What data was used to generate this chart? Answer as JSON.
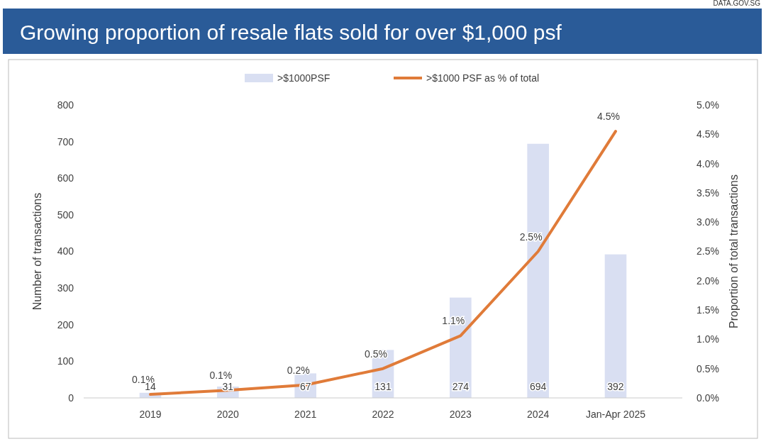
{
  "chart_data": {
    "type": "bar",
    "title": "Growing proportion of resale flats sold for over $1,000 psf",
    "annotations": [
      "DATA.GOV.SG"
    ],
    "categories": [
      "2019",
      "2020",
      "2021",
      "2022",
      "2023",
      "2024",
      "Jan-Apr 2025"
    ],
    "series": [
      {
        "name": ">$1000PSF",
        "color": "#d9dff2",
        "values": [
          14,
          31,
          67,
          131,
          274,
          694,
          392
        ],
        "value_labels": [
          "14",
          "31",
          "67",
          "131",
          "274",
          "694",
          "392"
        ]
      },
      {
        "name": ">$1000 PSF as % of total",
        "type": "line",
        "axis": "y2",
        "color": "#e07b39",
        "values": [
          0.06,
          0.13,
          0.22,
          0.5,
          1.06,
          2.5,
          4.55
        ],
        "value_labels": [
          "0.1%",
          "0.1%",
          "0.2%",
          "0.5%",
          "1.1%",
          "2.5%",
          "4.5%"
        ]
      }
    ],
    "ylabel": "Number of transactions",
    "y2label": "Proportion of total transactions",
    "ylim": [
      0,
      800
    ],
    "yticks": [
      0,
      100,
      200,
      300,
      400,
      500,
      600,
      700,
      800
    ],
    "y2lim": [
      0,
      5
    ],
    "y2ticks": [
      {
        "value": 0,
        "label": "0.0%"
      },
      {
        "value": 0.5,
        "label": "0.5%"
      },
      {
        "value": 1,
        "label": "1.0%"
      },
      {
        "value": 1.5,
        "label": "1.5%"
      },
      {
        "value": 2,
        "label": "2.0%"
      },
      {
        "value": 2.5,
        "label": "2.5%"
      },
      {
        "value": 3,
        "label": "3.0%"
      },
      {
        "value": 3.5,
        "label": "3.5%"
      },
      {
        "value": 4,
        "label": "4.0%"
      },
      {
        "value": 4.5,
        "label": "4.5%"
      },
      {
        "value": 5,
        "label": "5.0%"
      }
    ],
    "legend": "top",
    "grid": false,
    "marker": "none",
    "line_style": "solid"
  }
}
